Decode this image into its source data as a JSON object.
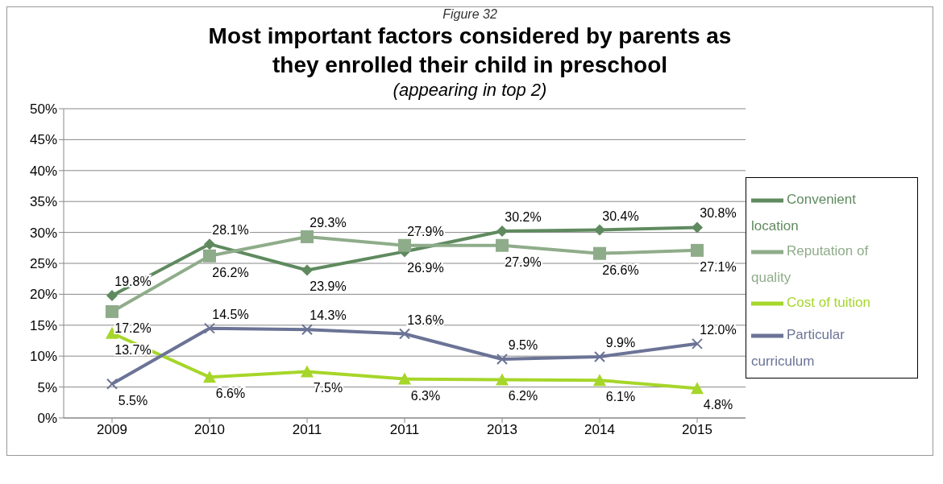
{
  "chart_data": {
    "type": "line",
    "title": "Most important factors considered by parents as they enrolled their child in preschool",
    "subtitle": "(appearing in top 2)",
    "annotations": [
      "Figure 32"
    ],
    "categories": [
      "2009",
      "2010",
      "2011",
      "2011",
      "2013",
      "2014",
      "2015"
    ],
    "series": [
      {
        "name": "Convenient location",
        "color": "#5f8a5f",
        "marker": "diamond",
        "values": [
          19.8,
          28.1,
          23.9,
          26.9,
          30.2,
          30.4,
          30.8
        ],
        "value_labels": [
          "19.8%",
          "28.1%",
          "23.9%",
          "26.9%",
          "30.2%",
          "30.4%",
          "30.8%"
        ]
      },
      {
        "name": "Reputation of quality",
        "color": "#8fac8a",
        "marker": "square",
        "values": [
          17.2,
          26.2,
          29.3,
          27.9,
          27.9,
          26.6,
          27.1
        ],
        "value_labels": [
          "17.2%",
          "26.2%",
          "29.3%",
          "27.9%",
          "27.9%",
          "26.6%",
          "27.1%"
        ]
      },
      {
        "name": "Cost of tuition",
        "color": "#a6d62a",
        "marker": "triangle",
        "values": [
          13.7,
          6.6,
          7.5,
          6.3,
          6.2,
          6.1,
          4.8
        ],
        "value_labels": [
          "13.7%",
          "6.6%",
          "7.5%",
          "6.3%",
          "6.2%",
          "6.1%",
          "4.8%"
        ]
      },
      {
        "name": "Particular curriculum",
        "color": "#6b7396",
        "marker": "cross",
        "values": [
          5.5,
          14.5,
          14.3,
          13.6,
          9.5,
          9.9,
          12.0
        ],
        "value_labels": [
          "5.5%",
          "14.5%",
          "14.3%",
          "13.6%",
          "9.5%",
          "9.9%",
          "12.0%"
        ]
      }
    ],
    "ylim": [
      0,
      50
    ],
    "yticks": [
      {
        "value": 0,
        "label": "0%"
      },
      {
        "value": 5,
        "label": "5%"
      },
      {
        "value": 10,
        "label": "10%"
      },
      {
        "value": 15,
        "label": "15%"
      },
      {
        "value": 20,
        "label": "20%"
      },
      {
        "value": 25,
        "label": "25%"
      },
      {
        "value": 30,
        "label": "30%"
      },
      {
        "value": 35,
        "label": "35%"
      },
      {
        "value": 40,
        "label": "40%"
      },
      {
        "value": 45,
        "label": "45%"
      },
      {
        "value": 50,
        "label": "50%"
      }
    ],
    "grid": "y",
    "legend": "right"
  }
}
